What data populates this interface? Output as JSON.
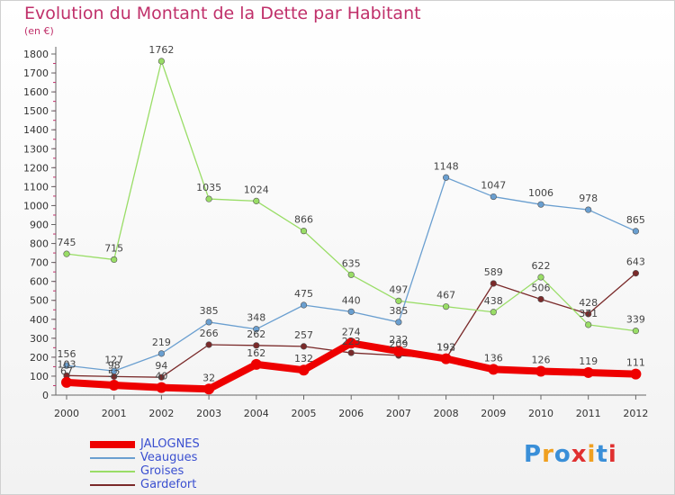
{
  "title": "Evolution du Montant de la Dette par Habitant",
  "subtitle": "(en €)",
  "logo_text": "Proxiti",
  "chart_data": {
    "type": "line",
    "x": [
      "2000",
      "2001",
      "2002",
      "2003",
      "2004",
      "2005",
      "2006",
      "2007",
      "2008",
      "2009",
      "2010",
      "2011",
      "2012"
    ],
    "ylim": [
      0,
      1800
    ],
    "yticks": [
      0,
      100,
      200,
      300,
      400,
      500,
      600,
      700,
      800,
      900,
      1000,
      1100,
      1200,
      1300,
      1400,
      1500,
      1600,
      1700,
      1800
    ],
    "grid": false,
    "legend_position": "bottom-left",
    "series": [
      {
        "name": "JALOGNES",
        "color": "#ee0000",
        "values": [
          67,
          52,
          40,
          32,
          162,
          132,
          274,
          232,
          192,
          136,
          126,
          119,
          111
        ]
      },
      {
        "name": "Veaugues",
        "color": "#6a9fd0",
        "values": [
          156,
          127,
          219,
          385,
          348,
          475,
          440,
          385,
          1148,
          1047,
          1006,
          978,
          865
        ]
      },
      {
        "name": "Groises",
        "color": "#99dd66",
        "values": [
          745,
          715,
          1762,
          1035,
          1024,
          866,
          635,
          497,
          467,
          438,
          622,
          371,
          339
        ]
      },
      {
        "name": "Gardefort",
        "color": "#7a2a2a",
        "values": [
          103,
          98,
          94,
          266,
          262,
          257,
          223,
          209,
          193,
          589,
          506,
          428,
          643
        ]
      }
    ]
  }
}
